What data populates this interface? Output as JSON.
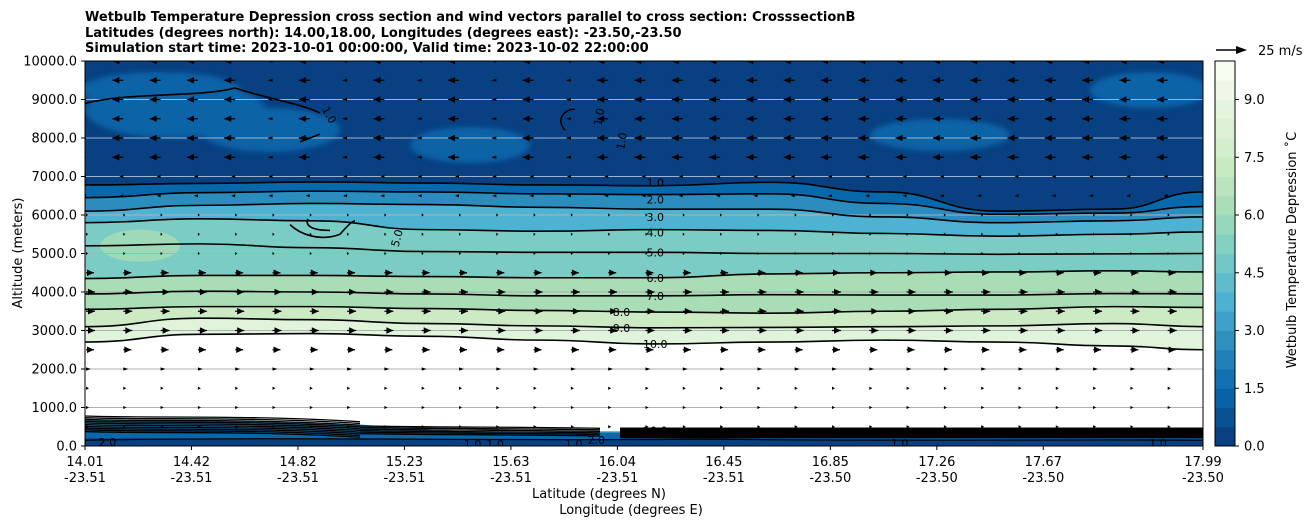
{
  "chart_data": {
    "type": "heatmap",
    "title_lines": [
      "Wetbulb Temperature Depression cross section and wind vectors parallel to cross section: CrosssectionB",
      "Latitudes (degrees north): 14.00,18.00, Longitudes (degrees east): -23.50,-23.50",
      "Simulation start time: 2023-10-01 00:00:00, Valid time: 2023-10-02 22:00:00"
    ],
    "ylabel": "Altitude (meters)",
    "xlabel_lat": "Latitude (degrees N)",
    "xlabel_lon": "Longitude (degrees E)",
    "ylim": [
      0,
      10000
    ],
    "y_ticks": [
      "0.0",
      "1000.0",
      "2000.0",
      "3000.0",
      "4000.0",
      "5000.0",
      "6000.0",
      "7000.0",
      "8000.0",
      "9000.0",
      "10000.0"
    ],
    "y_tick_values": [
      0,
      1000,
      2000,
      3000,
      4000,
      5000,
      6000,
      7000,
      8000,
      9000,
      10000
    ],
    "x_ticks": [
      {
        "lat": "14.01",
        "lon": "-23.51"
      },
      {
        "lat": "14.42",
        "lon": "-23.51"
      },
      {
        "lat": "14.82",
        "lon": "-23.51"
      },
      {
        "lat": "15.23",
        "lon": "-23.51"
      },
      {
        "lat": "15.63",
        "lon": "-23.51"
      },
      {
        "lat": "16.04",
        "lon": "-23.51"
      },
      {
        "lat": "16.45",
        "lon": "-23.51"
      },
      {
        "lat": "16.85",
        "lon": "-23.50"
      },
      {
        "lat": "17.26",
        "lon": "-23.50"
      },
      {
        "lat": "17.67",
        "lon": "-23.50"
      },
      {
        "lat": "17.99",
        "lon": "-23.50"
      }
    ],
    "x_range": [
      14.01,
      17.99
    ],
    "colorbar": {
      "label": "Wetbulb Temperature Depression ˚C",
      "range": [
        0,
        10
      ],
      "ticks": [
        "0.0",
        "1.5",
        "3.0",
        "4.5",
        "6.0",
        "7.5",
        "9.0"
      ],
      "tick_values": [
        0,
        1.5,
        3.0,
        4.5,
        6.0,
        7.5,
        9.0
      ],
      "colors": [
        "#084081",
        "#0868ac",
        "#2b8cbe",
        "#4eb3d3",
        "#7bccc4",
        "#a8ddb5",
        "#ccebc5",
        "#e0f3db",
        "#f7fcf0"
      ]
    },
    "quiver_key": {
      "label": "25 m/s",
      "speed": 25
    },
    "contour_levels": [
      "1.0",
      "2.0",
      "3.0",
      "4.0",
      "5.0",
      "6.0",
      "7.0",
      "8.0",
      "9.0",
      "10.0"
    ],
    "contours": [
      {
        "level": 1.0,
        "alts": [
          6780,
          6820,
          6860,
          6830,
          6780,
          6760,
          6850,
          6600,
          6100,
          6150,
          6600
        ]
      },
      {
        "level": 2.0,
        "alts": [
          6450,
          6580,
          6620,
          6600,
          6550,
          6530,
          6550,
          6300,
          6020,
          6050,
          6220
        ]
      },
      {
        "level": 3.0,
        "alts": [
          6100,
          6250,
          6300,
          6270,
          6200,
          6150,
          6150,
          5950,
          5800,
          5850,
          5950
        ]
      },
      {
        "level": 4.0,
        "alts": [
          5800,
          5900,
          5850,
          5620,
          5580,
          5620,
          5600,
          5520,
          5450,
          5500,
          5560
        ]
      },
      {
        "level": 5.0,
        "alts": [
          5200,
          5250,
          5150,
          5050,
          5030,
          5030,
          5000,
          5000,
          4980,
          4990,
          5000
        ]
      },
      {
        "level": 6.0,
        "alts": [
          4350,
          4430,
          4430,
          4400,
          4370,
          4370,
          4470,
          4500,
          4520,
          4550,
          4520
        ]
      },
      {
        "level": 7.0,
        "alts": [
          3950,
          4020,
          4000,
          3950,
          3900,
          3900,
          3930,
          3920,
          3920,
          3960,
          3950
        ]
      },
      {
        "level": 8.0,
        "alts": [
          3550,
          3620,
          3620,
          3570,
          3520,
          3480,
          3450,
          3500,
          3550,
          3620,
          3600
        ]
      },
      {
        "level": 9.0,
        "alts": [
          3100,
          3320,
          3280,
          3180,
          3120,
          3070,
          3080,
          3100,
          3120,
          3180,
          3100
        ]
      },
      {
        "level": 10.0,
        "alts": [
          2700,
          2900,
          2920,
          2850,
          2750,
          2650,
          2700,
          2750,
          2700,
          2600,
          2500
        ]
      }
    ],
    "inline_labels": [
      {
        "text": "1.0",
        "lat": 16.04,
        "alt": 6850
      },
      {
        "text": "2.0",
        "lat": 16.04,
        "alt": 6400
      },
      {
        "text": "3.0",
        "lat": 16.04,
        "alt": 5950
      },
      {
        "text": "4.0",
        "lat": 16.04,
        "alt": 5550
      },
      {
        "text": "5.0",
        "lat": 16.04,
        "alt": 5030
      },
      {
        "text": "6.0",
        "lat": 16.04,
        "alt": 4370
      },
      {
        "text": "7.0",
        "lat": 16.04,
        "alt": 3900
      },
      {
        "text": "8.0",
        "lat": 15.92,
        "alt": 3480
      },
      {
        "text": "9.0",
        "lat": 15.92,
        "alt": 3070
      },
      {
        "text": "10.0",
        "lat": 16.04,
        "alt": 2650
      },
      {
        "text": "1.0",
        "lat": 14.88,
        "alt": 8600
      },
      {
        "text": "1.0",
        "lat": 15.84,
        "alt": 8550
      },
      {
        "text": "1.0",
        "lat": 15.92,
        "alt": 7920
      },
      {
        "text": "5.0",
        "lat": 15.12,
        "alt": 5400
      },
      {
        "text": "2.0",
        "lat": 14.09,
        "alt": 100
      },
      {
        "text": "1.0",
        "lat": 15.39,
        "alt": 50
      },
      {
        "text": "1.0",
        "lat": 15.47,
        "alt": 50
      },
      {
        "text": "1.0",
        "lat": 15.75,
        "alt": 60
      },
      {
        "text": "2.0",
        "lat": 15.83,
        "alt": 150
      },
      {
        "text": "1.0",
        "lat": 16.91,
        "alt": 80
      },
      {
        "text": "1.0",
        "lat": 17.83,
        "alt": 80
      },
      {
        "text": "10.0",
        "lat": 16.04,
        "alt": 400
      }
    ],
    "upper_wind_from_right_above_m": 7000,
    "lower_wind_to_right_below_m": 7000
  }
}
